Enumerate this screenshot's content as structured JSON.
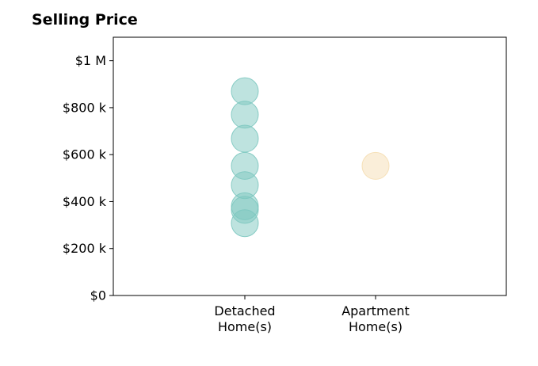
{
  "chart_data": {
    "type": "scatter",
    "title": "Selling Price",
    "xlabel": "",
    "ylabel": "",
    "categories": [
      {
        "lines": [
          "Detached",
          "Home(s)"
        ],
        "color": "#7dc8c0"
      },
      {
        "lines": [
          "Apartment",
          "Home(s)"
        ],
        "color": "#f5deb3"
      }
    ],
    "ylim": [
      0,
      1100000
    ],
    "yticks": [
      0,
      200000,
      400000,
      600000,
      800000,
      1000000
    ],
    "ytick_labels": [
      "$0",
      "$200 k",
      "$400 k",
      "$600 k",
      "$800 k",
      "$1 M"
    ],
    "points": [
      {
        "category": 0,
        "value": 870000
      },
      {
        "category": 0,
        "value": 770000
      },
      {
        "category": 0,
        "value": 668000
      },
      {
        "category": 0,
        "value": 552000
      },
      {
        "category": 0,
        "value": 470000
      },
      {
        "category": 0,
        "value": 380000
      },
      {
        "category": 0,
        "value": 365000
      },
      {
        "category": 0,
        "value": 308000
      },
      {
        "category": 1,
        "value": 552000
      }
    ],
    "grid": false,
    "legend": "none"
  }
}
